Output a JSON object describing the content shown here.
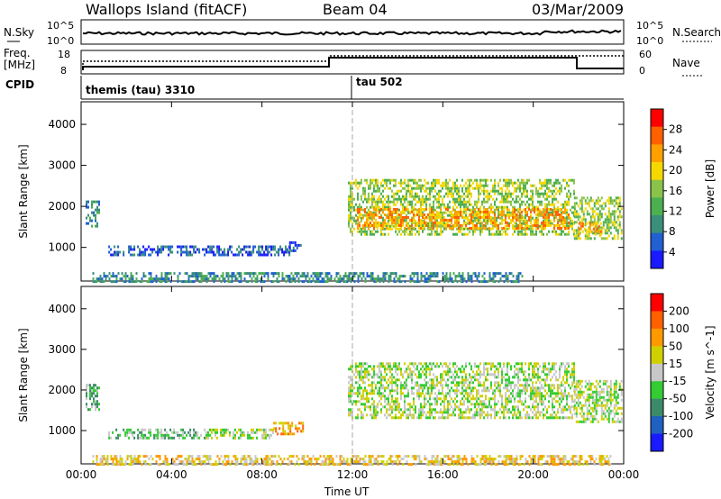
{
  "header": {
    "title": "Wallops Island (fitACF)",
    "beam": "Beam 04",
    "date": "03/Mar/2009"
  },
  "noise_panel": {
    "left_label": "N.Sky",
    "right_label": "N.Search",
    "left_ticks": [
      "10^5",
      "10^0"
    ],
    "right_ticks": [
      "10^5",
      "10^0"
    ]
  },
  "freq_panel": {
    "left_label_1": "Freq.",
    "left_label_2": "[MHz]",
    "right_label": "Nave",
    "left_ticks": [
      "18",
      "8"
    ],
    "right_ticks": [
      "60",
      "0"
    ]
  },
  "cpid_panel": {
    "label": "CPID",
    "segments": [
      {
        "name": "themis (tau) 3310",
        "start_hour": 0
      },
      {
        "name": "tau 502",
        "start_hour": 12
      }
    ]
  },
  "colors": {
    "power_scale": [
      "#1a1aff",
      "#2060d0",
      "#3a8f7a",
      "#4caf50",
      "#8bc34a",
      "#f5d800",
      "#ffa000",
      "#ff6000",
      "#ff0000"
    ],
    "velocity_scale": [
      "#1a1aff",
      "#2060c0",
      "#3d8a6a",
      "#33cc33",
      "#c8c8c8",
      "#d0d000",
      "#ff9900",
      "#ff6000",
      "#ff0000"
    ]
  },
  "chart_data": [
    {
      "type": "heatmap",
      "title": "Power",
      "ylabel": "Slant Range [km]",
      "xlabel": "",
      "xlim": [
        0,
        24
      ],
      "ylim": [
        180,
        4550
      ],
      "yticks": [
        1000,
        2000,
        3000,
        4000
      ],
      "xticks": [
        "00:00",
        "04:00",
        "08:00",
        "12:00",
        "16:00",
        "20:00",
        "00:00"
      ],
      "colorbar_label": "Power [dB]",
      "colorbar_ticks": [
        "28",
        "24",
        "20",
        "16",
        "12",
        "8",
        "4"
      ],
      "bands": [
        {
          "t0": 0.2,
          "t1": 0.8,
          "r0": 1550,
          "r1": 2200,
          "level": 2
        },
        {
          "t0": 1.2,
          "t1": 9.2,
          "r0": 850,
          "r1": 1100,
          "level": 1
        },
        {
          "t0": 9.2,
          "t1": 9.8,
          "r0": 950,
          "r1": 1200,
          "level": 1
        },
        {
          "t0": 11.8,
          "t1": 21.8,
          "r0": 1350,
          "r1": 2700,
          "level": 4
        },
        {
          "t0": 12.2,
          "t1": 21.6,
          "r0": 1500,
          "r1": 2000,
          "level": 6
        },
        {
          "t0": 21.8,
          "t1": 23.9,
          "r0": 1250,
          "r1": 2300,
          "level": 4
        },
        {
          "t0": 22.0,
          "t1": 23.0,
          "r0": 1350,
          "r1": 1650,
          "level": 6
        },
        {
          "t0": 0.5,
          "t1": 19.5,
          "r0": 200,
          "r1": 450,
          "level": 2
        }
      ]
    },
    {
      "type": "heatmap",
      "title": "Velocity",
      "ylabel": "Slant Range [km]",
      "xlabel": "Time UT",
      "xlim": [
        0,
        24
      ],
      "ylim": [
        180,
        4550
      ],
      "yticks": [
        1000,
        2000,
        3000,
        4000
      ],
      "xticks": [
        "00:00",
        "04:00",
        "08:00",
        "12:00",
        "16:00",
        "20:00",
        "00:00"
      ],
      "colorbar_label": "Velocity [m s^-1]",
      "colorbar_ticks": [
        "200",
        "100",
        "50",
        "15",
        "-15",
        "-50",
        "-100",
        "-200"
      ],
      "bands": [
        {
          "t0": 0.2,
          "t1": 0.8,
          "r0": 1550,
          "r1": 2200,
          "level": 3
        },
        {
          "t0": 1.2,
          "t1": 5.5,
          "r0": 850,
          "r1": 1100,
          "level": 3
        },
        {
          "t0": 5.5,
          "t1": 8.5,
          "r0": 850,
          "r1": 1100,
          "level": 4
        },
        {
          "t0": 8.5,
          "t1": 9.8,
          "r0": 950,
          "r1": 1250,
          "level": 6
        },
        {
          "t0": 11.8,
          "t1": 21.8,
          "r0": 1350,
          "r1": 2700,
          "level": 4
        },
        {
          "t0": 21.8,
          "t1": 23.9,
          "r0": 1250,
          "r1": 2300,
          "level": 4
        },
        {
          "t0": 0.5,
          "t1": 23.5,
          "r0": 200,
          "r1": 450,
          "level": 5
        }
      ]
    }
  ]
}
